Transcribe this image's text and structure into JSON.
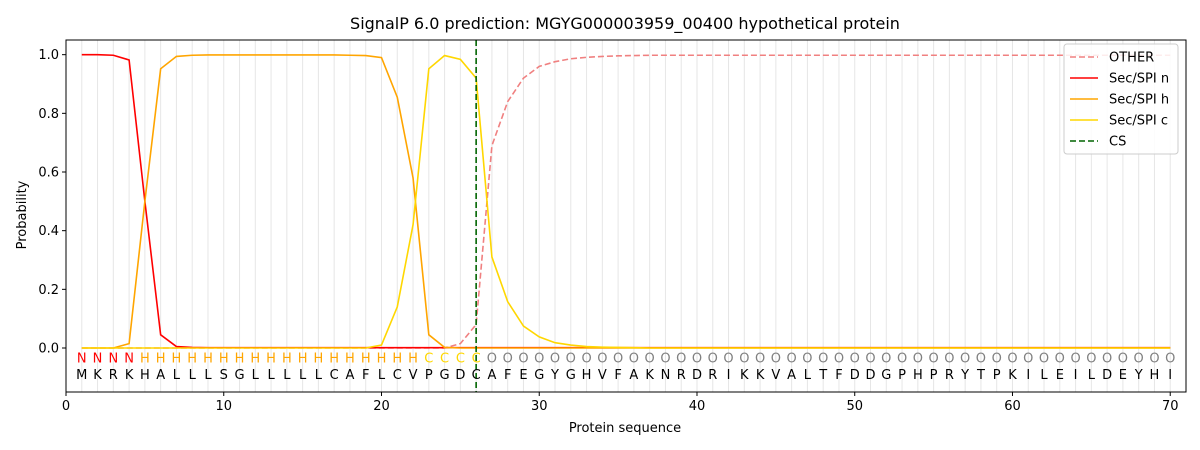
{
  "chart_data": {
    "type": "line",
    "title": "SignalP 6.0 prediction: MGYG000003959_00400 hypothetical protein",
    "xlabel": "Protein sequence",
    "ylabel": "Probability",
    "xlim": [
      0,
      71
    ],
    "ylim": [
      -0.15,
      1.05
    ],
    "xticks": [
      0,
      10,
      20,
      30,
      40,
      50,
      60,
      70
    ],
    "yticks": [
      0.0,
      0.2,
      0.4,
      0.6,
      0.8,
      1.0
    ],
    "ytick_labels": [
      "0.0",
      "0.2",
      "0.4",
      "0.6",
      "0.8",
      "1.0"
    ],
    "grid": "vertical lines at each residue",
    "legend_position": "top-right",
    "sequence": [
      "M",
      "K",
      "R",
      "K",
      "H",
      "A",
      "L",
      "L",
      "L",
      "S",
      "G",
      "L",
      "L",
      "L",
      "L",
      "L",
      "C",
      "A",
      "F",
      "L",
      "C",
      "V",
      "P",
      "G",
      "D",
      "C",
      "A",
      "F",
      "E",
      "G",
      "Y",
      "G",
      "H",
      "V",
      "F",
      "A",
      "K",
      "N",
      "R",
      "D",
      "R",
      "I",
      "K",
      "K",
      "V",
      "A",
      "L",
      "T",
      "F",
      "D",
      "D",
      "G",
      "P",
      "H",
      "P",
      "R",
      "Y",
      "T",
      "P",
      "K",
      "I",
      "L",
      "E",
      "I",
      "L",
      "D",
      "E",
      "Y",
      "H",
      "I"
    ],
    "region_labels": [
      "N",
      "N",
      "N",
      "N",
      "H",
      "H",
      "H",
      "H",
      "H",
      "H",
      "H",
      "H",
      "H",
      "H",
      "H",
      "H",
      "H",
      "H",
      "H",
      "H",
      "H",
      "H",
      "C",
      "C",
      "C",
      "C",
      "O",
      "O",
      "O",
      "O",
      "O",
      "O",
      "O",
      "O",
      "O",
      "O",
      "O",
      "O",
      "O",
      "O",
      "O",
      "O",
      "O",
      "O",
      "O",
      "O",
      "O",
      "O",
      "O",
      "O",
      "O",
      "O",
      "O",
      "O",
      "O",
      "O",
      "O",
      "O",
      "O",
      "O",
      "O",
      "O",
      "O",
      "O",
      "O",
      "O",
      "O",
      "O",
      "O",
      "O"
    ],
    "region_colors": {
      "N": "#ff0000",
      "H": "#ffa500",
      "C": "#ffd700",
      "O": "#808080"
    },
    "cleavage_site": 26,
    "series": [
      {
        "name": "OTHER",
        "color": "#f08080",
        "dash": "dashed",
        "values": [
          0,
          0,
          0,
          0,
          0,
          0,
          0,
          0,
          0,
          0,
          0,
          0,
          0,
          0,
          0,
          0,
          0,
          0,
          0,
          0,
          0,
          0,
          0,
          0,
          0.015,
          0.08,
          0.69,
          0.84,
          0.92,
          0.96,
          0.976,
          0.986,
          0.991,
          0.994,
          0.996,
          0.997,
          0.998,
          0.998,
          0.998,
          0.998,
          0.998,
          0.998,
          0.998,
          0.998,
          0.998,
          0.998,
          0.998,
          0.998,
          0.998,
          0.998,
          0.998,
          0.998,
          0.998,
          0.998,
          0.998,
          0.998,
          0.998,
          0.998,
          0.998,
          0.998,
          0.998,
          0.998,
          0.998,
          0.998,
          0.998,
          0.998,
          0.998,
          0.998,
          0.998,
          0.998
        ]
      },
      {
        "name": "Sec/SPI n",
        "color": "#ff0000",
        "dash": "solid",
        "values": [
          1.0,
          1.0,
          0.998,
          0.982,
          0.5,
          0.045,
          0.005,
          0.002,
          0.001,
          0.001,
          0.001,
          0.001,
          0.001,
          0.001,
          0.001,
          0.001,
          0.001,
          0.001,
          0.001,
          0.001,
          0.001,
          0.001,
          0.001,
          0.001,
          0.001,
          0.001,
          0.001,
          0.001,
          0.001,
          0.001,
          0.001,
          0.001,
          0.001,
          0.001,
          0.001,
          0.001,
          0.001,
          0.001,
          0.001,
          0.001,
          0.001,
          0.001,
          0.001,
          0.001,
          0.001,
          0.001,
          0.001,
          0.001,
          0.001,
          0.001,
          0.001,
          0.001,
          0.001,
          0.001,
          0.001,
          0.001,
          0.001,
          0.001,
          0.001,
          0.001,
          0.001,
          0.001,
          0.001,
          0.001,
          0.001,
          0.001,
          0.001,
          0.001,
          0.001,
          0.001
        ]
      },
      {
        "name": "Sec/SPI h",
        "color": "#ffa500",
        "dash": "solid",
        "values": [
          0,
          0,
          0,
          0.015,
          0.5,
          0.952,
          0.994,
          0.998,
          0.999,
          0.999,
          0.999,
          0.999,
          0.999,
          0.999,
          0.999,
          0.999,
          0.999,
          0.998,
          0.997,
          0.99,
          0.855,
          0.58,
          0.045,
          0.002,
          0,
          0,
          0,
          0,
          0,
          0,
          0,
          0,
          0,
          0,
          0,
          0,
          0,
          0,
          0,
          0,
          0,
          0,
          0,
          0,
          0,
          0,
          0,
          0,
          0,
          0,
          0,
          0,
          0,
          0,
          0,
          0,
          0,
          0,
          0,
          0,
          0,
          0,
          0,
          0,
          0,
          0,
          0,
          0,
          0,
          0
        ]
      },
      {
        "name": "Sec/SPI c",
        "color": "#ffd700",
        "dash": "solid",
        "values": [
          0,
          0,
          0,
          0,
          0,
          0,
          0,
          0,
          0,
          0,
          0,
          0,
          0,
          0,
          0,
          0,
          0,
          0,
          0,
          0.01,
          0.14,
          0.42,
          0.952,
          0.997,
          0.984,
          0.92,
          0.31,
          0.158,
          0.075,
          0.038,
          0.018,
          0.01,
          0.005,
          0.003,
          0.002,
          0.001,
          0,
          0,
          0,
          0,
          0,
          0,
          0,
          0,
          0,
          0,
          0,
          0,
          0,
          0,
          0,
          0,
          0,
          0,
          0,
          0,
          0,
          0,
          0,
          0,
          0,
          0,
          0,
          0,
          0,
          0,
          0,
          0,
          0,
          0
        ]
      },
      {
        "name": "CS",
        "color": "#006400",
        "dash": "dashed",
        "values": []
      }
    ]
  }
}
